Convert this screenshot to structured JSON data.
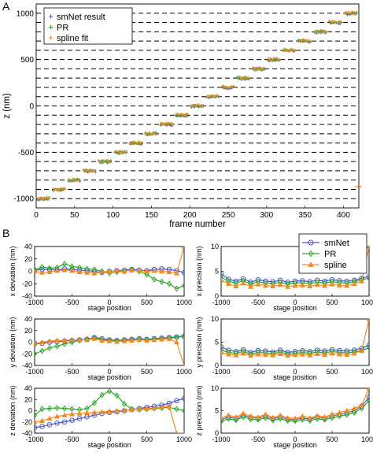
{
  "panel_labels": {
    "a": "A",
    "b": "B"
  },
  "colors": {
    "smnet": "#4a57c8",
    "pr": "#2ca82c",
    "spline": "#f28a21"
  },
  "chart_data": [
    {
      "id": "A",
      "type": "scatter",
      "xlabel": "frame number",
      "ylabel": "z (nm)",
      "xlim": [
        0,
        420
      ],
      "ylim": [
        -1100,
        1100
      ],
      "xticks": [
        0,
        50,
        100,
        150,
        200,
        250,
        300,
        350,
        400
      ],
      "yticks": [
        -1000,
        -500,
        0,
        500,
        1000
      ],
      "grid": "dashed horizontal lines at every 100 nm",
      "legend": "top-left",
      "series": [
        {
          "name": "smNet result",
          "marker": "+",
          "color": "#4a57c8"
        },
        {
          "name": "PR",
          "marker": "+",
          "color": "#2ca82c"
        },
        {
          "name": "spline fit",
          "marker": "+",
          "color": "#f28a21"
        }
      ],
      "steps": {
        "frames_per_step": 20,
        "step_start_frames": [
          0,
          20,
          40,
          60,
          80,
          100,
          120,
          140,
          160,
          180,
          200,
          220,
          240,
          260,
          280,
          300,
          320,
          340,
          360,
          380,
          400
        ],
        "z": [
          -1000,
          -900,
          -800,
          -700,
          -600,
          -500,
          -400,
          -300,
          -200,
          -100,
          0,
          100,
          200,
          300,
          400,
          500,
          600,
          700,
          800,
          900,
          1000
        ]
      },
      "outliers": [
        {
          "x": 416,
          "y": -870,
          "series": "spline fit"
        }
      ]
    },
    {
      "id": "B-x-deviation",
      "type": "line",
      "xlabel": "stage position",
      "ylabel": "x deviation (nm)",
      "xlim": [
        -1000,
        1000
      ],
      "ylim": [
        -40,
        40
      ],
      "xticks": [
        -1000,
        -500,
        0,
        500,
        1000
      ],
      "yticks": [
        -40,
        -20,
        0,
        20,
        40
      ],
      "x": [
        -1000,
        -900,
        -800,
        -700,
        -600,
        -500,
        -400,
        -300,
        -200,
        -100,
        0,
        100,
        200,
        300,
        400,
        500,
        600,
        700,
        800,
        900,
        1000
      ],
      "series": [
        {
          "name": "smNet",
          "values": [
            2,
            3,
            3,
            2,
            4,
            3,
            2,
            1,
            0,
            -2,
            0,
            1,
            2,
            3,
            2,
            1,
            3,
            4,
            3,
            1,
            -2
          ]
        },
        {
          "name": "PR",
          "values": [
            3,
            7,
            5,
            6,
            12,
            8,
            6,
            4,
            3,
            0,
            -3,
            -1,
            0,
            2,
            0,
            -5,
            -13,
            -17,
            -20,
            -28,
            -23
          ]
        },
        {
          "name": "spline",
          "values": [
            0,
            -2,
            -1,
            1,
            2,
            1,
            -1,
            -2,
            -3,
            -1,
            0,
            1,
            0,
            2,
            1,
            0,
            1,
            0,
            -1,
            -3,
            40
          ]
        }
      ]
    },
    {
      "id": "B-x-precision",
      "type": "line",
      "xlabel": "stage position",
      "ylabel": "x precision (nm)",
      "xlim": [
        -1000,
        1000
      ],
      "ylim": [
        0,
        10
      ],
      "xticks": [
        -1000,
        -500,
        0,
        500,
        1000
      ],
      "yticks": [
        0,
        5,
        10
      ],
      "legend": "top-right",
      "x": [
        -1000,
        -900,
        -800,
        -700,
        -600,
        -500,
        -400,
        -300,
        -200,
        -100,
        0,
        100,
        200,
        300,
        400,
        500,
        600,
        700,
        800,
        900,
        1000
      ],
      "series": [
        {
          "name": "smNet",
          "values": [
            4.5,
            3.4,
            3.0,
            3.5,
            2.8,
            3.3,
            3.0,
            2.9,
            3.2,
            2.8,
            3.0,
            3.1,
            2.9,
            3.2,
            3.0,
            3.3,
            3.1,
            3.0,
            3.2,
            3.6,
            4.0
          ]
        },
        {
          "name": "PR",
          "values": [
            3.8,
            3.0,
            2.6,
            3.1,
            2.4,
            2.9,
            2.6,
            2.5,
            2.8,
            2.4,
            2.6,
            2.7,
            2.5,
            2.8,
            2.6,
            2.9,
            2.7,
            2.6,
            2.9,
            3.3,
            3.6
          ]
        },
        {
          "name": "spline",
          "values": [
            3.2,
            2.5,
            2.0,
            2.6,
            1.9,
            2.4,
            2.1,
            2.0,
            2.3,
            1.9,
            2.1,
            2.2,
            2.0,
            2.3,
            2.1,
            2.4,
            2.2,
            2.1,
            2.5,
            3.0,
            10
          ]
        }
      ]
    },
    {
      "id": "B-y-deviation",
      "type": "line",
      "xlabel": "stage position",
      "ylabel": "y deviation (nm)",
      "xlim": [
        -1000,
        1000
      ],
      "ylim": [
        -40,
        40
      ],
      "xticks": [
        -1000,
        -500,
        0,
        500,
        1000
      ],
      "yticks": [
        -40,
        -20,
        0,
        20,
        40
      ],
      "x": [
        -1000,
        -900,
        -800,
        -700,
        -600,
        -500,
        -400,
        -300,
        -200,
        -100,
        0,
        100,
        200,
        300,
        400,
        500,
        600,
        700,
        800,
        900,
        1000
      ],
      "series": [
        {
          "name": "smNet",
          "values": [
            -3,
            -2,
            0,
            1,
            2,
            3,
            4,
            5,
            8,
            6,
            4,
            3,
            4,
            5,
            6,
            5,
            6,
            7,
            8,
            9,
            10
          ]
        },
        {
          "name": "PR",
          "values": [
            -20,
            -15,
            -10,
            -7,
            -3,
            0,
            3,
            5,
            7,
            4,
            3,
            2,
            3,
            4,
            5,
            4,
            5,
            6,
            7,
            8,
            12
          ]
        },
        {
          "name": "spline",
          "values": [
            -3,
            0,
            2,
            3,
            3,
            4,
            4,
            4,
            6,
            3,
            2,
            1,
            2,
            3,
            4,
            3,
            4,
            5,
            6,
            0,
            -40
          ]
        }
      ]
    },
    {
      "id": "B-y-precision",
      "type": "line",
      "xlabel": "stage position",
      "ylabel": "y precision (nm)",
      "xlim": [
        -1000,
        1000
      ],
      "ylim": [
        0,
        10
      ],
      "xticks": [
        -1000,
        -500,
        0,
        500,
        1000
      ],
      "yticks": [
        0,
        5,
        10
      ],
      "x": [
        -1000,
        -900,
        -800,
        -700,
        -600,
        -500,
        -400,
        -300,
        -200,
        -100,
        0,
        100,
        200,
        300,
        400,
        500,
        600,
        700,
        800,
        900,
        1000
      ],
      "series": [
        {
          "name": "smNet",
          "values": [
            4.0,
            3.3,
            3.0,
            3.4,
            2.8,
            3.2,
            3.1,
            2.9,
            3.3,
            2.8,
            3.0,
            3.2,
            3.0,
            3.3,
            3.1,
            3.4,
            3.2,
            3.1,
            3.3,
            3.7,
            4.4
          ]
        },
        {
          "name": "PR",
          "values": [
            3.3,
            2.8,
            2.6,
            3.0,
            2.4,
            2.8,
            2.7,
            2.5,
            2.9,
            2.4,
            2.6,
            2.8,
            2.6,
            2.9,
            2.7,
            3.0,
            2.8,
            2.7,
            2.9,
            3.2,
            3.8
          ]
        },
        {
          "name": "spline",
          "values": [
            2.8,
            2.4,
            2.2,
            2.6,
            2.1,
            2.4,
            2.3,
            2.2,
            2.5,
            2.1,
            2.3,
            2.4,
            2.2,
            2.5,
            2.3,
            2.6,
            2.4,
            2.3,
            2.6,
            3.2,
            10
          ]
        }
      ]
    },
    {
      "id": "B-z-deviation",
      "type": "line",
      "xlabel": "stage position",
      "ylabel": "z deviation (nm)",
      "xlim": [
        -1000,
        1000
      ],
      "ylim": [
        -40,
        40
      ],
      "xticks": [
        -1000,
        -500,
        0,
        500,
        1000
      ],
      "yticks": [
        -40,
        -20,
        0,
        20,
        40
      ],
      "x": [
        -1000,
        -900,
        -800,
        -700,
        -600,
        -500,
        -400,
        -300,
        -200,
        -100,
        0,
        100,
        200,
        300,
        400,
        500,
        600,
        700,
        800,
        900,
        1000
      ],
      "series": [
        {
          "name": "smNet",
          "values": [
            -30,
            -28,
            -25,
            -22,
            -20,
            -17,
            -14,
            -11,
            -8,
            -5,
            -3,
            -2,
            0,
            2,
            4,
            6,
            8,
            10,
            13,
            18,
            22
          ]
        },
        {
          "name": "PR",
          "values": [
            -8,
            3,
            4,
            5,
            4,
            3,
            2,
            4,
            14,
            28,
            35,
            27,
            12,
            3,
            2,
            3,
            4,
            5,
            6,
            3,
            0
          ]
        },
        {
          "name": "spline",
          "values": [
            -20,
            -18,
            -14,
            -10,
            -8,
            -6,
            -5,
            -4,
            -3,
            -2,
            -1,
            0,
            0,
            2,
            3,
            4,
            5,
            6,
            8,
            -40,
            -40
          ]
        }
      ]
    },
    {
      "id": "B-z-precision",
      "type": "line",
      "xlabel": "stage position",
      "ylabel": "z precision (nm)",
      "xlim": [
        -1000,
        1000
      ],
      "ylim": [
        0,
        10
      ],
      "xticks": [
        -1000,
        -500,
        0,
        500,
        1000
      ],
      "yticks": [
        0,
        5,
        10
      ],
      "x": [
        -1000,
        -900,
        -800,
        -700,
        -600,
        -500,
        -400,
        -300,
        -200,
        -100,
        0,
        100,
        200,
        300,
        400,
        500,
        600,
        700,
        800,
        900,
        1000
      ],
      "series": [
        {
          "name": "smNet",
          "values": [
            3.0,
            3.6,
            3.2,
            4.0,
            3.5,
            3.3,
            3.8,
            3.2,
            3.6,
            3.1,
            3.0,
            3.4,
            3.1,
            3.6,
            3.3,
            3.8,
            4.2,
            4.5,
            5.0,
            6.0,
            8.0
          ]
        },
        {
          "name": "PR",
          "values": [
            2.6,
            3.2,
            2.9,
            3.6,
            3.1,
            3.0,
            3.4,
            2.9,
            3.2,
            2.8,
            2.7,
            3.0,
            2.8,
            3.2,
            3.0,
            3.4,
            3.8,
            4.1,
            4.6,
            5.5,
            7.2
          ]
        },
        {
          "name": "spline",
          "values": [
            3.4,
            4.0,
            3.6,
            4.4,
            3.8,
            3.6,
            4.2,
            3.5,
            4.0,
            3.4,
            3.3,
            3.8,
            3.4,
            3.9,
            3.6,
            4.2,
            4.6,
            5.0,
            5.5,
            6.2,
            10
          ]
        }
      ]
    }
  ]
}
